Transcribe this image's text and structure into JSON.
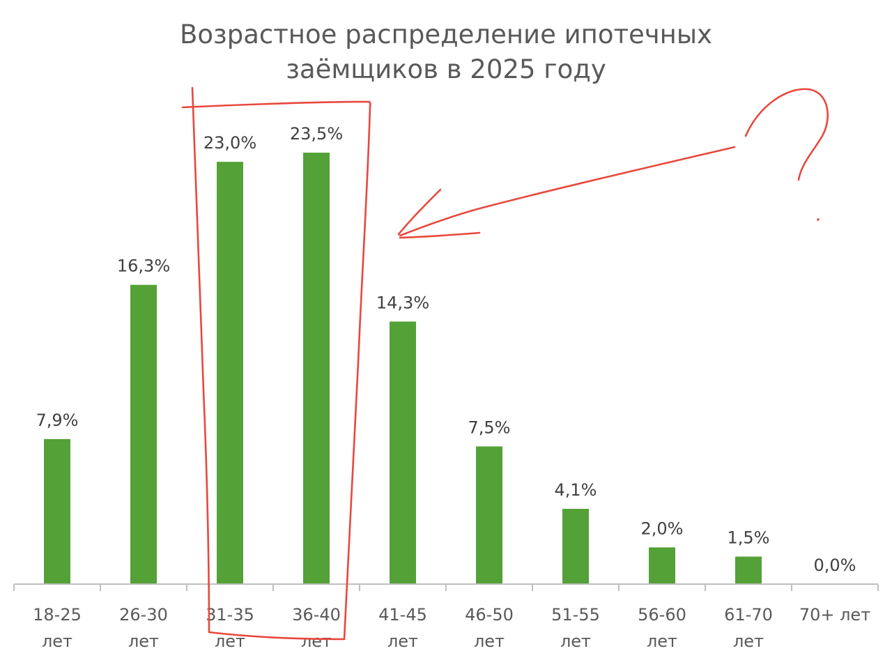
{
  "chart_data": {
    "type": "bar",
    "title": [
      "Возрастное распределение ипотечных",
      "заёмщиков в 2025 году"
    ],
    "categories": [
      [
        "18-25",
        "лет"
      ],
      [
        "26-30",
        "лет"
      ],
      [
        "31-35",
        "лет"
      ],
      [
        "36-40",
        "лет"
      ],
      [
        "41-45",
        "лет"
      ],
      [
        "46-50",
        "лет"
      ],
      [
        "51-55",
        "лет"
      ],
      [
        "56-60",
        "лет"
      ],
      [
        "61-70",
        "лет"
      ],
      [
        "70+ лет"
      ]
    ],
    "values": [
      7.9,
      16.3,
      23.0,
      23.5,
      14.3,
      7.5,
      4.1,
      2.0,
      1.5,
      0.0
    ],
    "value_labels": [
      "7,9%",
      "16,3%",
      "23,0%",
      "23,5%",
      "14,3%",
      "7,5%",
      "4,1%",
      "2,0%",
      "1,5%",
      "0,0%"
    ],
    "bar_color": "#54a138",
    "annotation_color": "#e8483d",
    "grid": false,
    "legend": "none",
    "highlighted_categories": [
      "31-35",
      "36-40"
    ],
    "annotation": "hand-drawn red rectangle around the 31-35 and 36-40 bars, arrow pointing at them and a question mark"
  }
}
